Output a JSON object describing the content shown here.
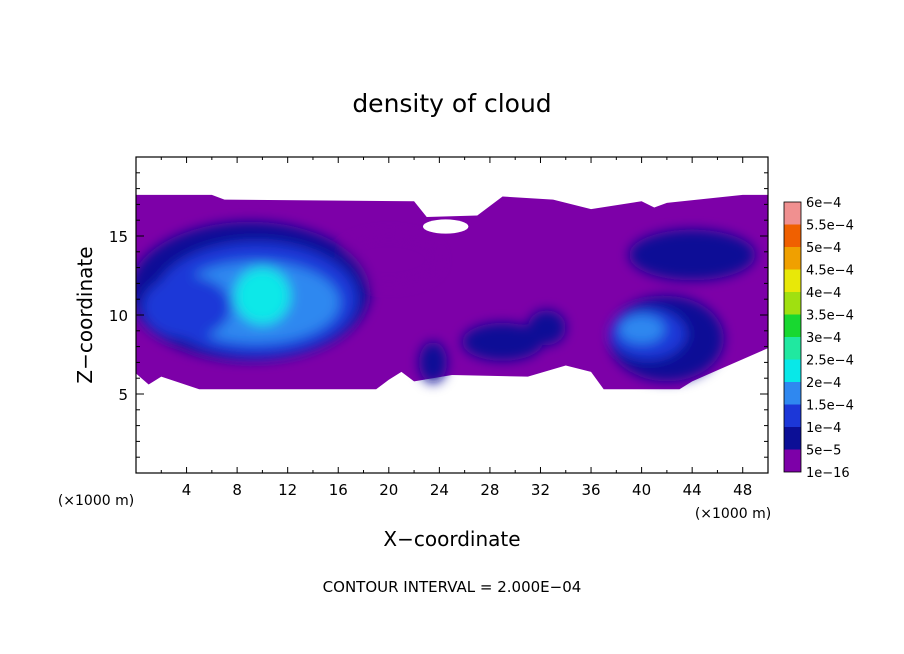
{
  "chart_data": {
    "type": "heatmap",
    "title": "density of cloud",
    "xlabel": "X−coordinate",
    "ylabel": "Z−coordinate",
    "x_unit_label": "(×1000 m)",
    "y_unit_label": "(×1000 m)",
    "xlim": [
      0,
      50
    ],
    "ylim": [
      0,
      20
    ],
    "x_ticks": [
      4,
      8,
      12,
      16,
      20,
      24,
      28,
      32,
      36,
      40,
      44,
      48
    ],
    "x_tick_labels": [
      "4",
      "8",
      "12",
      "16",
      "20",
      "24",
      "28",
      "32",
      "36",
      "40",
      "44",
      "48"
    ],
    "y_ticks": [
      5,
      10,
      15
    ],
    "y_tick_labels": [
      "5",
      "10",
      "15"
    ],
    "contour_interval_text": "CONTOUR INTERVAL = 2.000E−04",
    "legend": {
      "labels": [
        "1e−16",
        "5e−5",
        "1e−4",
        "1.5e−4",
        "2e−4",
        "2.5e−4",
        "3e−4",
        "3.5e−4",
        "4e−4",
        "4.5e−4",
        "5e−4",
        "5.5e−4",
        "6e−4"
      ],
      "colors": [
        "#7d00a8",
        "#0c0f96",
        "#1c37d8",
        "#2f88f0",
        "#08e8e8",
        "#20e8a0",
        "#18d830",
        "#a0e010",
        "#e8e808",
        "#f0a000",
        "#f06000",
        "#f03030",
        "#f09090"
      ]
    },
    "field": {
      "background": "#7d00a8",
      "regions": [
        {
          "level": 0,
          "cx": 20,
          "cz": 13.5,
          "rx": 4,
          "rz": 1.6
        },
        {
          "level": 1,
          "cx": 9,
          "cz": 11.5,
          "rx": 9.5,
          "rz": 4.4
        },
        {
          "level": 2,
          "cx": 9.5,
          "cz": 11,
          "rx": 8,
          "rz": 3.6
        },
        {
          "level": 3,
          "cx": 9.5,
          "cz": 10.8,
          "rx": 6.6,
          "rz": 2.6
        },
        {
          "level": 4,
          "cx": 10,
          "cz": 11.2,
          "rx": 2.2,
          "rz": 1.8
        },
        {
          "level": 2,
          "cx": 4,
          "cz": 10.5,
          "rx": 3.5,
          "rz": 2
        },
        {
          "level": 1,
          "cx": 29,
          "cz": 8.3,
          "rx": 3.2,
          "rz": 1.2
        },
        {
          "level": 1,
          "cx": 23.5,
          "cz": 7,
          "rx": 1.1,
          "rz": 1.3
        },
        {
          "level": 1,
          "cx": 44,
          "cz": 13.8,
          "rx": 5,
          "rz": 1.6
        },
        {
          "level": 1,
          "cx": 42,
          "cz": 8.5,
          "rx": 4.5,
          "rz": 2.7
        },
        {
          "level": 2,
          "cx": 40.5,
          "cz": 8.8,
          "rx": 3,
          "rz": 1.6
        },
        {
          "level": 3,
          "cx": 40,
          "cz": 9.1,
          "rx": 1.8,
          "rz": 0.9
        },
        {
          "level": 1,
          "cx": 32.5,
          "cz": 9.2,
          "rx": 1.5,
          "rz": 1.1
        }
      ],
      "cloud_top_profile": [
        [
          0,
          17.6
        ],
        [
          6,
          17.6
        ],
        [
          7,
          17.3
        ],
        [
          22,
          17.2
        ],
        [
          23,
          16.2
        ],
        [
          27,
          16.3
        ],
        [
          29,
          17.5
        ],
        [
          33,
          17.3
        ],
        [
          36,
          16.7
        ],
        [
          40,
          17.2
        ],
        [
          41,
          16.8
        ],
        [
          42,
          17.1
        ],
        [
          48,
          17.6
        ],
        [
          50,
          17.6
        ]
      ],
      "cloud_base_profile": [
        [
          0,
          6.3
        ],
        [
          1,
          5.6
        ],
        [
          2,
          6.1
        ],
        [
          5,
          5.3
        ],
        [
          19,
          5.3
        ],
        [
          20,
          5.9
        ],
        [
          21,
          6.4
        ],
        [
          22,
          5.8
        ],
        [
          25,
          6.2
        ],
        [
          31,
          6.1
        ],
        [
          34,
          6.8
        ],
        [
          36,
          6.4
        ],
        [
          37,
          5.3
        ],
        [
          43,
          5.3
        ],
        [
          44,
          5.8
        ],
        [
          46,
          6.5
        ],
        [
          48,
          7.2
        ],
        [
          50,
          7.9
        ]
      ],
      "clear_gaps": [
        {
          "cx": 24.5,
          "cz": 15.6,
          "rx": 1.8,
          "rz": 0.45
        }
      ]
    }
  }
}
